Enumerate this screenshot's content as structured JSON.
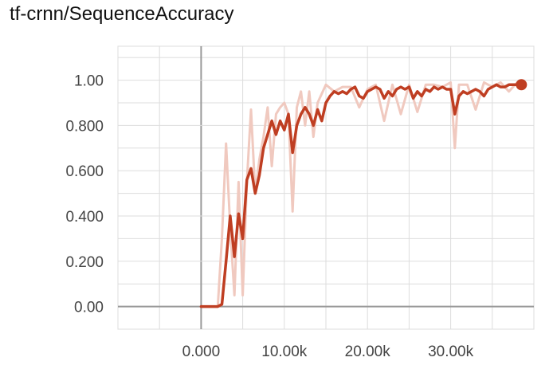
{
  "chart_data": {
    "type": "line",
    "title": "tf-crnn/SequenceAccuracy",
    "xlabel": "",
    "ylabel": "",
    "xlim": [
      -10000,
      40000
    ],
    "ylim": [
      -0.1,
      1.15
    ],
    "grid": true,
    "x_ticks": [
      {
        "value": 0,
        "label": "0.000"
      },
      {
        "value": 10000,
        "label": "10.00k"
      },
      {
        "value": 20000,
        "label": "20.00k"
      },
      {
        "value": 30000,
        "label": "30.00k"
      }
    ],
    "y_ticks": [
      {
        "value": 0,
        "label": "0.00"
      },
      {
        "value": 0.2,
        "label": "0.200"
      },
      {
        "value": 0.4,
        "label": "0.400"
      },
      {
        "value": 0.6,
        "label": "0.600"
      },
      {
        "value": 0.8,
        "label": "0.800"
      },
      {
        "value": 1.0,
        "label": "1.00"
      }
    ],
    "colors": {
      "smoothed": "#bf3e22",
      "raw": "#f0c9bf",
      "grid": "#dddddd",
      "zero_axis": "#999999"
    },
    "series": [
      {
        "role": "raw",
        "x": [
          0,
          1000,
          2000,
          2500,
          3000,
          3500,
          4000,
          4500,
          5000,
          5500,
          6000,
          6500,
          7000,
          7500,
          8000,
          8500,
          9000,
          9500,
          10000,
          10500,
          11000,
          11500,
          12000,
          12500,
          13000,
          13500,
          14000,
          15000,
          16000,
          17000,
          18000,
          19000,
          20000,
          21000,
          22000,
          23000,
          24000,
          25000,
          26000,
          27000,
          28000,
          29000,
          30000,
          30500,
          31000,
          32000,
          33000,
          34000,
          35000,
          36000,
          37000,
          38000
        ],
        "y": [
          0,
          0,
          0,
          0.3,
          0.72,
          0.35,
          0.05,
          0.55,
          0.05,
          0.55,
          0.87,
          0.5,
          0.65,
          0.75,
          0.88,
          0.62,
          0.85,
          0.88,
          0.9,
          0.85,
          0.42,
          0.88,
          0.95,
          0.8,
          0.95,
          0.75,
          0.9,
          0.98,
          0.95,
          0.97,
          0.97,
          0.88,
          0.96,
          0.98,
          0.82,
          0.98,
          0.85,
          0.98,
          0.86,
          0.98,
          0.98,
          0.97,
          0.99,
          0.7,
          0.98,
          0.98,
          0.87,
          0.99,
          0.97,
          0.99,
          0.95,
          0.99
        ]
      },
      {
        "role": "smoothed",
        "x": [
          0,
          500,
          1000,
          1500,
          2000,
          2500,
          3000,
          3500,
          4000,
          4500,
          5000,
          5500,
          6000,
          6500,
          7000,
          7500,
          8000,
          8500,
          9000,
          9500,
          10000,
          10500,
          11000,
          11500,
          12000,
          12500,
          13000,
          13500,
          14000,
          14500,
          15000,
          15500,
          16000,
          16500,
          17000,
          17500,
          18000,
          18500,
          19000,
          19500,
          20000,
          20500,
          21000,
          21500,
          22000,
          22500,
          23000,
          23500,
          24000,
          24500,
          25000,
          25500,
          26000,
          26500,
          27000,
          27500,
          28000,
          28500,
          29000,
          29500,
          30000,
          30500,
          31000,
          31500,
          32000,
          32500,
          33000,
          33500,
          34000,
          34500,
          35000,
          35500,
          36000,
          36500,
          37000,
          37500,
          38000,
          38500
        ],
        "y": [
          0,
          0,
          0,
          0,
          0,
          0.01,
          0.2,
          0.4,
          0.22,
          0.41,
          0.3,
          0.56,
          0.61,
          0.5,
          0.58,
          0.7,
          0.76,
          0.82,
          0.76,
          0.82,
          0.78,
          0.85,
          0.68,
          0.8,
          0.85,
          0.88,
          0.85,
          0.8,
          0.87,
          0.82,
          0.9,
          0.93,
          0.95,
          0.94,
          0.95,
          0.94,
          0.96,
          0.97,
          0.93,
          0.92,
          0.95,
          0.96,
          0.97,
          0.96,
          0.92,
          0.95,
          0.93,
          0.96,
          0.97,
          0.96,
          0.97,
          0.92,
          0.95,
          0.93,
          0.96,
          0.95,
          0.97,
          0.96,
          0.97,
          0.96,
          0.96,
          0.85,
          0.93,
          0.95,
          0.94,
          0.95,
          0.96,
          0.95,
          0.93,
          0.96,
          0.97,
          0.98,
          0.97,
          0.97,
          0.98,
          0.98,
          0.98,
          0.98
        ]
      }
    ],
    "last_point": {
      "x": 38500,
      "y": 0.98
    }
  }
}
